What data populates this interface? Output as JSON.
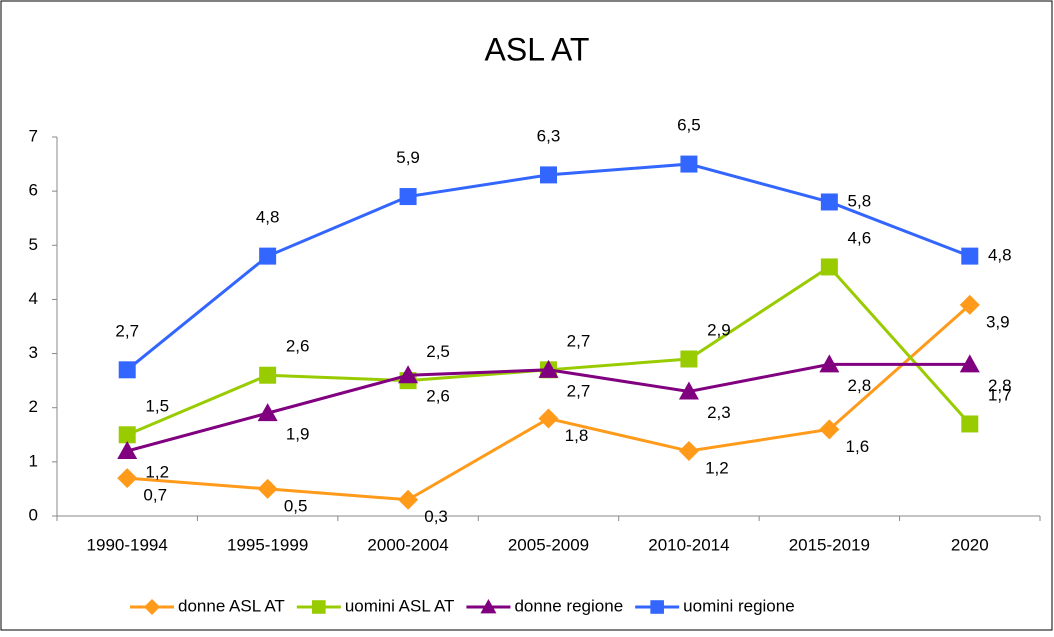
{
  "chart_data": {
    "type": "line",
    "title": "ASL AT",
    "categories": [
      "1990-1994",
      "1995-1999",
      "2000-2004",
      "2005-2009",
      "2010-2014",
      "2015-2019",
      "2020"
    ],
    "series": [
      {
        "name": "donne ASL AT",
        "color": "#ff9a1a",
        "marker": "diamond",
        "values": [
          0.7,
          0.5,
          0.3,
          1.8,
          1.2,
          1.6,
          3.9
        ],
        "value_labels": [
          "0,7",
          "0,5",
          "0,3",
          "1,8",
          "1,2",
          "1,6",
          "3,9"
        ]
      },
      {
        "name": "uomini ASL AT",
        "color": "#99cc00",
        "marker": "square",
        "values": [
          1.5,
          2.6,
          2.5,
          2.7,
          2.9,
          4.6,
          1.7
        ],
        "value_labels": [
          "1,5",
          "2,6",
          "2,5",
          "2,7",
          "2,9",
          "4,6",
          "1,7"
        ]
      },
      {
        "name": "donne regione",
        "color": "#800080",
        "marker": "triangle",
        "values": [
          1.2,
          1.9,
          2.6,
          2.7,
          2.3,
          2.8,
          2.8
        ],
        "value_labels": [
          "1,2",
          "1,9",
          "2,6",
          "2,7",
          "2,3",
          "2,8",
          "2,8"
        ]
      },
      {
        "name": "uomini regione",
        "color": "#3366ff",
        "marker": "square",
        "values": [
          2.7,
          4.8,
          5.9,
          6.3,
          6.5,
          5.8,
          4.8
        ],
        "value_labels": [
          "2,7",
          "4,8",
          "5,9",
          "6,3",
          "6,5",
          "5,8",
          "4,8"
        ]
      }
    ],
    "ylim": [
      0,
      7
    ],
    "yticks": [
      0,
      1,
      2,
      3,
      4,
      5,
      6,
      7
    ],
    "grid": false,
    "legend": "bottom"
  }
}
